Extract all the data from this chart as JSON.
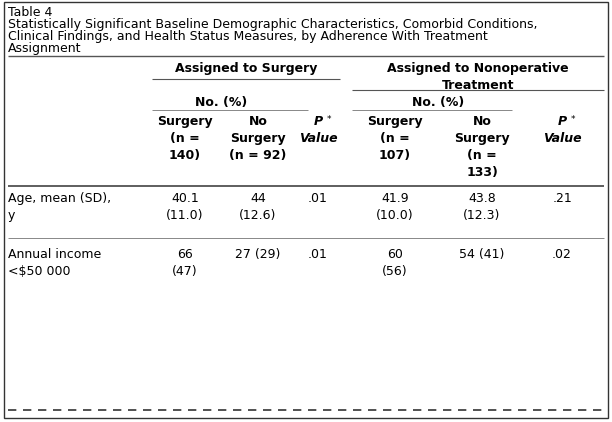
{
  "table_label": "Table 4",
  "title_lines": [
    "Statistically Significant Baseline Demographic Characteristics, Comorbid Conditions,",
    "Clinical Findings, and Health Status Measures, by Adherence With Treatment",
    "Assignment"
  ],
  "group1_header": "Assigned to Surgery",
  "group2_header": "Assigned to Nonoperative\nTreatment",
  "subheader": "No. (%)",
  "bg_color": "#ffffff",
  "text_color": "#000000",
  "font_size": 9.0,
  "rows": [
    {
      "label": "Age, mean (SD),\ny",
      "v1": "40.1\n(11.0)",
      "v2": "44\n(12.6)",
      "v3": ".01",
      "v4": "41.9\n(10.0)",
      "v5": "43.8\n(12.3)",
      "v6": ".21"
    },
    {
      "label": "Annual income\n<$50 000",
      "v1": "66\n(47)",
      "v2": "27 (29)",
      "v3": ".01",
      "v4": "60\n(56)",
      "v5": "54 (41)",
      "v6": ".02"
    }
  ]
}
